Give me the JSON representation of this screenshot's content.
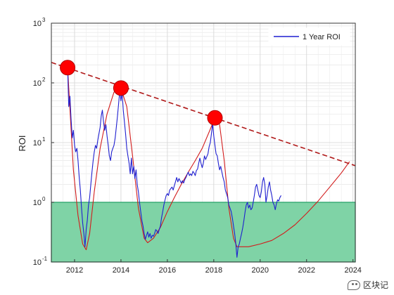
{
  "chart_data": {
    "type": "line",
    "title": "",
    "xlabel": "",
    "ylabel": "ROI",
    "yscale": "log",
    "xlim": [
      2011.0,
      2024.1
    ],
    "ylim": [
      0.1,
      1000
    ],
    "grid": true,
    "legend_position": "top-right",
    "x_ticks": [
      "2012",
      "2014",
      "2016",
      "2018",
      "2020",
      "2022",
      "2024"
    ],
    "y_ticks": [
      {
        "base": "10",
        "exp": "-1",
        "value": 0.1
      },
      {
        "base": "10",
        "exp": "0",
        "value": 1
      },
      {
        "base": "10",
        "exp": "1",
        "value": 10
      },
      {
        "base": "10",
        "exp": "2",
        "value": 100
      },
      {
        "base": "10",
        "exp": "3",
        "value": 1000
      }
    ],
    "shaded_band": {
      "y_from": 0.1,
      "y_to": 1,
      "color": "#7fd3a6",
      "border": "#1f9f63"
    },
    "series": [
      {
        "name": "1 Year ROI",
        "color": "#1f1fd0",
        "points": [
          [
            2011.7,
            180
          ],
          [
            2011.75,
            40
          ],
          [
            2011.8,
            60
          ],
          [
            2011.85,
            25
          ],
          [
            2011.9,
            12
          ],
          [
            2011.95,
            16
          ],
          [
            2012.0,
            9
          ],
          [
            2012.05,
            7
          ],
          [
            2012.1,
            8
          ],
          [
            2012.15,
            5
          ],
          [
            2012.2,
            2.6
          ],
          [
            2012.25,
            1.6
          ],
          [
            2012.3,
            0.8
          ],
          [
            2012.35,
            0.45
          ],
          [
            2012.4,
            0.3
          ],
          [
            2012.45,
            0.18
          ],
          [
            2012.5,
            0.35
          ],
          [
            2012.55,
            0.5
          ],
          [
            2012.6,
            0.9
          ],
          [
            2012.65,
            1.2
          ],
          [
            2012.7,
            2.0
          ],
          [
            2012.75,
            3.2
          ],
          [
            2012.8,
            5.0
          ],
          [
            2012.85,
            7.0
          ],
          [
            2012.9,
            9.0
          ],
          [
            2012.95,
            8.0
          ],
          [
            2013.0,
            11.0
          ],
          [
            2013.05,
            14.0
          ],
          [
            2013.1,
            18.0
          ],
          [
            2013.15,
            28.0
          ],
          [
            2013.2,
            35.0
          ],
          [
            2013.25,
            22.0
          ],
          [
            2013.3,
            16.0
          ],
          [
            2013.35,
            20.0
          ],
          [
            2013.4,
            13.0
          ],
          [
            2013.45,
            9.0
          ],
          [
            2013.5,
            6.0
          ],
          [
            2013.55,
            5.0
          ],
          [
            2013.6,
            7.0
          ],
          [
            2013.65,
            8.0
          ],
          [
            2013.7,
            9.0
          ],
          [
            2013.75,
            12.0
          ],
          [
            2013.8,
            18.0
          ],
          [
            2013.85,
            28.0
          ],
          [
            2013.9,
            45.0
          ],
          [
            2013.95,
            75.0
          ],
          [
            2014.0,
            50.0
          ],
          [
            2014.05,
            70.0
          ],
          [
            2014.1,
            35.0
          ],
          [
            2014.15,
            22.0
          ],
          [
            2014.2,
            14.0
          ],
          [
            2014.25,
            8.0
          ],
          [
            2014.3,
            6.0
          ],
          [
            2014.35,
            4.5
          ],
          [
            2014.4,
            3.0
          ],
          [
            2014.45,
            5.5
          ],
          [
            2014.5,
            3.0
          ],
          [
            2014.55,
            4.0
          ],
          [
            2014.6,
            2.5
          ],
          [
            2014.65,
            3.5
          ],
          [
            2014.7,
            2.0
          ],
          [
            2014.75,
            1.5
          ],
          [
            2014.8,
            1.0
          ],
          [
            2014.85,
            0.7
          ],
          [
            2014.9,
            0.5
          ],
          [
            2014.95,
            0.4
          ],
          [
            2015.0,
            0.3
          ],
          [
            2015.05,
            0.24
          ],
          [
            2015.1,
            0.28
          ],
          [
            2015.15,
            0.32
          ],
          [
            2015.2,
            0.26
          ],
          [
            2015.25,
            0.3
          ],
          [
            2015.3,
            0.25
          ],
          [
            2015.35,
            0.28
          ],
          [
            2015.4,
            0.27
          ],
          [
            2015.45,
            0.3
          ],
          [
            2015.5,
            0.35
          ],
          [
            2015.55,
            0.33
          ],
          [
            2015.6,
            0.3
          ],
          [
            2015.65,
            0.35
          ],
          [
            2015.7,
            0.4
          ],
          [
            2015.75,
            0.55
          ],
          [
            2015.8,
            0.7
          ],
          [
            2015.85,
            0.9
          ],
          [
            2015.9,
            1.1
          ],
          [
            2015.95,
            1.3
          ],
          [
            2016.0,
            1.4
          ],
          [
            2016.05,
            1.3
          ],
          [
            2016.1,
            1.6
          ],
          [
            2016.15,
            1.7
          ],
          [
            2016.2,
            1.8
          ],
          [
            2016.25,
            1.6
          ],
          [
            2016.3,
            1.9
          ],
          [
            2016.35,
            2.2
          ],
          [
            2016.4,
            2.6
          ],
          [
            2016.45,
            2.2
          ],
          [
            2016.5,
            2.5
          ],
          [
            2016.55,
            2.3
          ],
          [
            2016.6,
            2.1
          ],
          [
            2016.65,
            2.3
          ],
          [
            2016.7,
            2.1
          ],
          [
            2016.75,
            2.4
          ],
          [
            2016.8,
            2.6
          ],
          [
            2016.85,
            2.9
          ],
          [
            2016.9,
            3.2
          ],
          [
            2016.95,
            2.8
          ],
          [
            2017.0,
            3.0
          ],
          [
            2017.05,
            2.8
          ],
          [
            2017.1,
            3.3
          ],
          [
            2017.15,
            3.1
          ],
          [
            2017.2,
            2.8
          ],
          [
            2017.25,
            3.4
          ],
          [
            2017.3,
            3.6
          ],
          [
            2017.35,
            4.5
          ],
          [
            2017.4,
            5.5
          ],
          [
            2017.45,
            4.5
          ],
          [
            2017.5,
            3.8
          ],
          [
            2017.55,
            4.5
          ],
          [
            2017.6,
            6.0
          ],
          [
            2017.65,
            5.2
          ],
          [
            2017.7,
            5.8
          ],
          [
            2017.75,
            6.5
          ],
          [
            2017.8,
            8.5
          ],
          [
            2017.85,
            10.0
          ],
          [
            2017.9,
            14.0
          ],
          [
            2017.95,
            21.0
          ],
          [
            2018.0,
            13.0
          ],
          [
            2018.05,
            9.0
          ],
          [
            2018.1,
            6.5
          ],
          [
            2018.15,
            6.0
          ],
          [
            2018.2,
            4.5
          ],
          [
            2018.25,
            3.5
          ],
          [
            2018.3,
            4.0
          ],
          [
            2018.35,
            3.2
          ],
          [
            2018.4,
            2.6
          ],
          [
            2018.45,
            2.2
          ],
          [
            2018.5,
            1.6
          ],
          [
            2018.55,
            1.4
          ],
          [
            2018.6,
            1.2
          ],
          [
            2018.65,
            0.9
          ],
          [
            2018.7,
            0.8
          ],
          [
            2018.75,
            0.7
          ],
          [
            2018.8,
            0.55
          ],
          [
            2018.85,
            0.4
          ],
          [
            2018.9,
            0.3
          ],
          [
            2018.95,
            0.2
          ],
          [
            2019.0,
            0.12
          ],
          [
            2019.05,
            0.18
          ],
          [
            2019.1,
            0.2
          ],
          [
            2019.15,
            0.25
          ],
          [
            2019.2,
            0.3
          ],
          [
            2019.25,
            0.38
          ],
          [
            2019.3,
            0.5
          ],
          [
            2019.35,
            0.7
          ],
          [
            2019.4,
            0.9
          ],
          [
            2019.45,
            1.0
          ],
          [
            2019.5,
            0.8
          ],
          [
            2019.55,
            0.9
          ],
          [
            2019.6,
            0.75
          ],
          [
            2019.65,
            0.8
          ],
          [
            2019.7,
            1.0
          ],
          [
            2019.75,
            1.3
          ],
          [
            2019.8,
            1.8
          ],
          [
            2019.85,
            2.0
          ],
          [
            2019.9,
            1.6
          ],
          [
            2019.95,
            1.3
          ],
          [
            2020.0,
            1.2
          ],
          [
            2020.05,
            1.5
          ],
          [
            2020.1,
            2.2
          ],
          [
            2020.15,
            2.6
          ],
          [
            2020.2,
            2.0
          ],
          [
            2020.25,
            1.0
          ],
          [
            2020.3,
            1.3
          ],
          [
            2020.35,
            1.8
          ],
          [
            2020.4,
            2.2
          ],
          [
            2020.45,
            1.6
          ],
          [
            2020.5,
            1.3
          ],
          [
            2020.55,
            1.0
          ],
          [
            2020.6,
            0.9
          ],
          [
            2020.65,
            0.75
          ],
          [
            2020.7,
            0.95
          ],
          [
            2020.75,
            1.1
          ],
          [
            2020.8,
            1.05
          ],
          [
            2020.85,
            1.2
          ],
          [
            2020.9,
            1.3
          ]
        ]
      },
      {
        "name": "",
        "color": "#d21c1c",
        "points": [
          [
            2011.7,
            180
          ],
          [
            2011.95,
            3.5
          ],
          [
            2012.15,
            0.6
          ],
          [
            2012.35,
            0.2
          ],
          [
            2012.5,
            0.16
          ],
          [
            2012.65,
            0.3
          ],
          [
            2012.85,
            1.5
          ],
          [
            2013.1,
            8.0
          ],
          [
            2013.4,
            30.0
          ],
          [
            2013.7,
            70.0
          ],
          [
            2014.0,
            82.0
          ],
          [
            2014.25,
            40.0
          ],
          [
            2014.5,
            6.0
          ],
          [
            2014.75,
            0.8
          ],
          [
            2015.0,
            0.25
          ],
          [
            2015.15,
            0.21
          ],
          [
            2015.4,
            0.25
          ],
          [
            2015.7,
            0.38
          ],
          [
            2016.0,
            0.7
          ],
          [
            2016.3,
            1.2
          ],
          [
            2016.6,
            2.0
          ],
          [
            2016.9,
            3.2
          ],
          [
            2017.2,
            5.0
          ],
          [
            2017.5,
            8.0
          ],
          [
            2017.8,
            15.0
          ],
          [
            2018.05,
            26.0
          ],
          [
            2018.25,
            20.0
          ],
          [
            2018.45,
            5.0
          ],
          [
            2018.65,
            0.8
          ],
          [
            2018.85,
            0.25
          ],
          [
            2019.0,
            0.18
          ],
          [
            2019.5,
            0.18
          ],
          [
            2020.0,
            0.2
          ],
          [
            2020.5,
            0.23
          ],
          [
            2021.0,
            0.3
          ],
          [
            2021.5,
            0.42
          ],
          [
            2022.0,
            0.65
          ],
          [
            2022.5,
            1.05
          ],
          [
            2023.0,
            1.8
          ],
          [
            2023.5,
            3.1
          ],
          [
            2023.85,
            4.8
          ]
        ]
      },
      {
        "name": "",
        "color": "#b01818",
        "dashed": true,
        "points": [
          [
            2011.0,
            220
          ],
          [
            2024.1,
            4.1
          ]
        ]
      }
    ],
    "peaks": [
      {
        "x": 2011.7,
        "y": 180
      },
      {
        "x": 2014.0,
        "y": 82
      },
      {
        "x": 2018.05,
        "y": 26
      }
    ]
  },
  "watermark": {
    "text": "区块记"
  }
}
